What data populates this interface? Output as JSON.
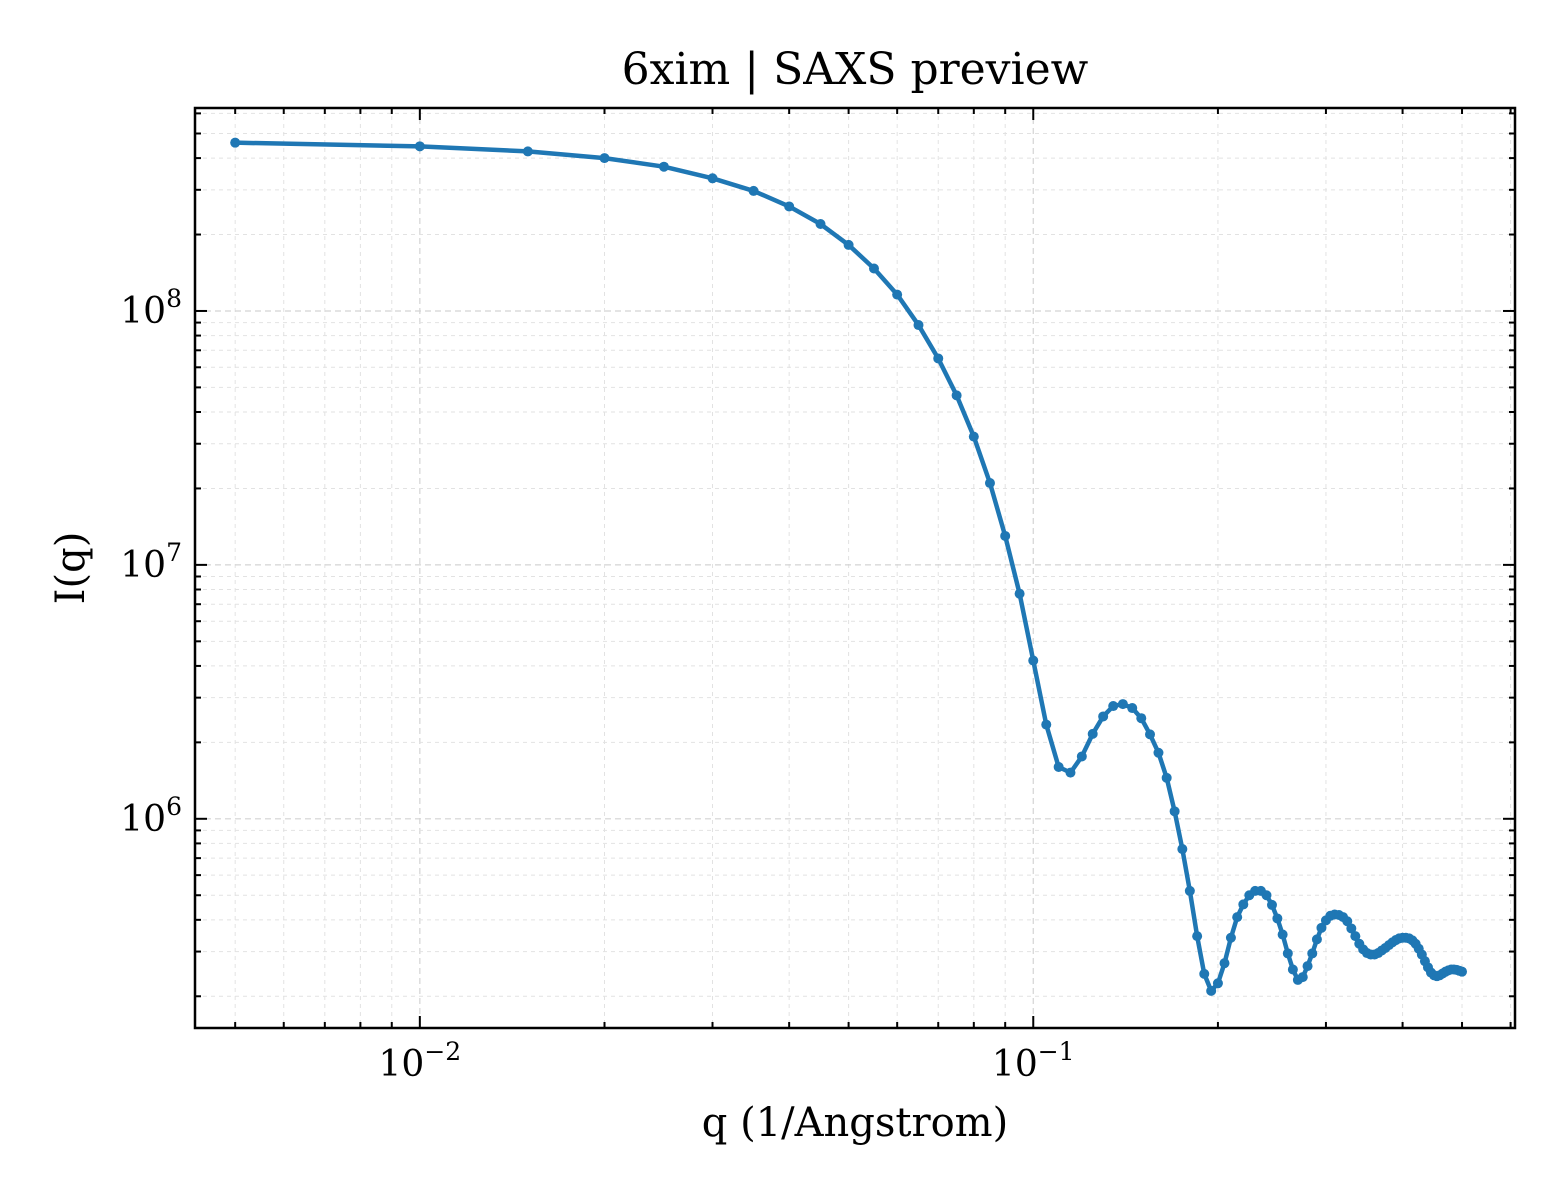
{
  "chart_data": {
    "type": "line",
    "title": "6xim | SAXS preview",
    "xlabel": "q (1/Angstrom)",
    "ylabel": "I(q)",
    "xscale": "log",
    "yscale": "log",
    "xlim": [
      0.0043,
      0.61
    ],
    "ylim": [
      150000,
      630000000
    ],
    "grid": true,
    "legend": "none",
    "xticks": [
      {
        "value": 0.01,
        "base": "10",
        "exp": "−2"
      },
      {
        "value": 0.1,
        "base": "10",
        "exp": "−1"
      }
    ],
    "yticks": [
      {
        "value": 1000000,
        "base": "10",
        "exp": "6"
      },
      {
        "value": 10000000,
        "base": "10",
        "exp": "7"
      },
      {
        "value": 100000000,
        "base": "10",
        "exp": "8"
      }
    ],
    "color": "#1f77b4",
    "series": [
      {
        "x": [
          0.005,
          0.01,
          0.015,
          0.02,
          0.025,
          0.03,
          0.035,
          0.04,
          0.045,
          0.05,
          0.055,
          0.06,
          0.065,
          0.07,
          0.075,
          0.08,
          0.085,
          0.09,
          0.095,
          0.1,
          0.105,
          0.11,
          0.115,
          0.12,
          0.125,
          0.13,
          0.135,
          0.14,
          0.145,
          0.15,
          0.155,
          0.16,
          0.165,
          0.17,
          0.175,
          0.18,
          0.185,
          0.19,
          0.195,
          0.2,
          0.205,
          0.21,
          0.215,
          0.22,
          0.225,
          0.23,
          0.235,
          0.24,
          0.245,
          0.25,
          0.255,
          0.26,
          0.265,
          0.27,
          0.275,
          0.28,
          0.285,
          0.29,
          0.295,
          0.3,
          0.305,
          0.31,
          0.315,
          0.32,
          0.325,
          0.33,
          0.335,
          0.34,
          0.345,
          0.35,
          0.355,
          0.36,
          0.365,
          0.37,
          0.375,
          0.38,
          0.385,
          0.39,
          0.395,
          0.4,
          0.405,
          0.41,
          0.415,
          0.42,
          0.425,
          0.43,
          0.435,
          0.44,
          0.445,
          0.45,
          0.455,
          0.46,
          0.465,
          0.47,
          0.475,
          0.48,
          0.485,
          0.49,
          0.495,
          0.5
        ],
        "y": [
          460000000,
          445000000,
          425000000,
          400000000,
          370000000,
          333000000,
          297000000,
          258000000,
          220000000,
          182000000,
          147000000,
          116000000,
          88000000,
          65000000,
          46500000,
          32000000,
          21000000,
          13000000,
          7700000,
          4200000,
          2350000,
          1600000,
          1520000,
          1760000,
          2160000,
          2530000,
          2780000,
          2830000,
          2730000,
          2490000,
          2150000,
          1820000,
          1450000,
          1070000,
          760000,
          520000,
          345000,
          245000,
          210000,
          225000,
          270000,
          340000,
          410000,
          460000,
          500000,
          520000,
          520000,
          500000,
          458000,
          405000,
          350000,
          295000,
          255000,
          232000,
          238000,
          263000,
          295000,
          335000,
          372000,
          398000,
          415000,
          420000,
          418000,
          410000,
          395000,
          370000,
          345000,
          322000,
          306000,
          296000,
          292000,
          292000,
          296000,
          303000,
          310000,
          318000,
          326000,
          333000,
          338000,
          340000,
          340000,
          338000,
          332000,
          322000,
          308000,
          292000,
          275000,
          260000,
          248000,
          242000,
          240000,
          242000,
          246000,
          250000,
          253000,
          255000,
          255000,
          254000,
          252000,
          250000
        ]
      }
    ]
  }
}
